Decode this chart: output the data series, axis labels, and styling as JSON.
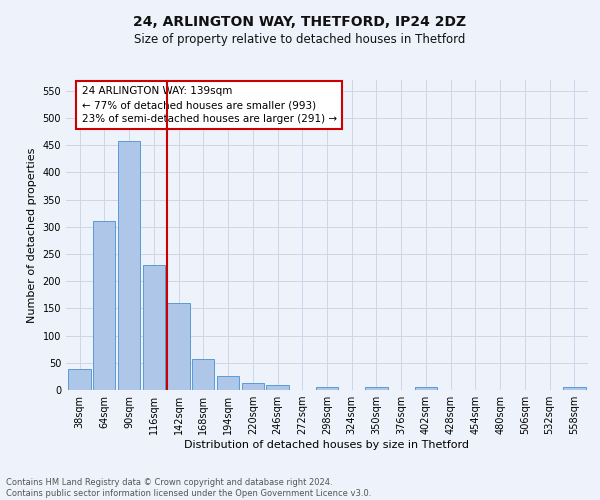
{
  "title": "24, ARLINGTON WAY, THETFORD, IP24 2DZ",
  "subtitle": "Size of property relative to detached houses in Thetford",
  "xlabel": "Distribution of detached houses by size in Thetford",
  "ylabel": "Number of detached properties",
  "footer_line1": "Contains HM Land Registry data © Crown copyright and database right 2024.",
  "footer_line2": "Contains public sector information licensed under the Open Government Licence v3.0.",
  "bar_labels": [
    "38sqm",
    "64sqm",
    "90sqm",
    "116sqm",
    "142sqm",
    "168sqm",
    "194sqm",
    "220sqm",
    "246sqm",
    "272sqm",
    "298sqm",
    "324sqm",
    "350sqm",
    "376sqm",
    "402sqm",
    "428sqm",
    "454sqm",
    "480sqm",
    "506sqm",
    "532sqm",
    "558sqm"
  ],
  "bar_values": [
    38,
    311,
    457,
    230,
    160,
    57,
    26,
    12,
    10,
    0,
    5,
    0,
    5,
    0,
    5,
    0,
    0,
    0,
    0,
    0,
    5
  ],
  "bar_color": "#aec6e8",
  "bar_edge_color": "#5b9bd5",
  "annotation_text": "24 ARLINGTON WAY: 139sqm\n← 77% of detached houses are smaller (993)\n23% of semi-detached houses are larger (291) →",
  "annotation_box_color": "#ffffff",
  "annotation_box_edge_color": "#cc0000",
  "red_line_bin_index": 4,
  "ylim": [
    0,
    570
  ],
  "yticks": [
    0,
    50,
    100,
    150,
    200,
    250,
    300,
    350,
    400,
    450,
    500,
    550
  ],
  "grid_color": "#cdd6e8",
  "background_color": "#eef2fa",
  "title_fontsize": 10,
  "subtitle_fontsize": 8.5,
  "ylabel_fontsize": 8,
  "xlabel_fontsize": 8,
  "tick_fontsize": 7,
  "footer_fontsize": 6,
  "annotation_fontsize": 7.5
}
